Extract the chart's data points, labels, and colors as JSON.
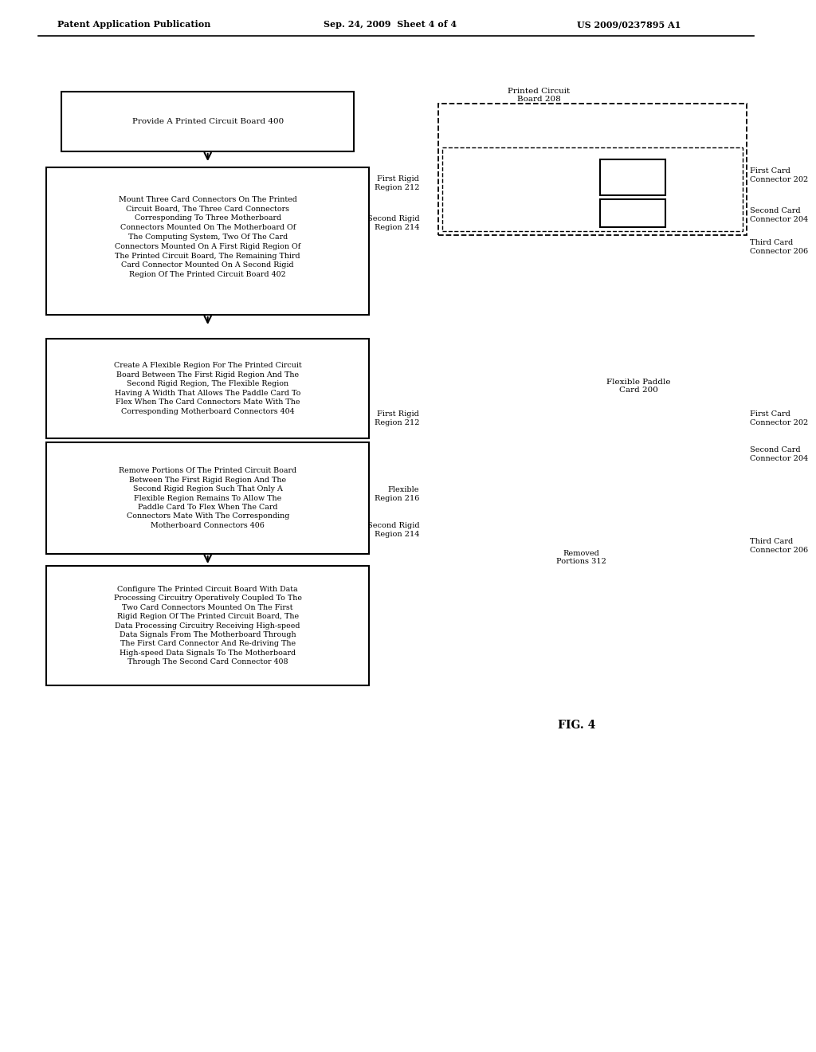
{
  "bg_color": "#ffffff",
  "header_left": "Patent Application Publication",
  "header_mid": "Sep. 24, 2009  Sheet 4 of 4",
  "header_right": "US 2009/0237895 A1",
  "fig_label": "FIG. 4",
  "box1_text": "Provide A Printed Circuit Board 400",
  "box2_text": "Mount Three Card Connectors On The Printed\nCircuit Board, The Three Card Connectors\nCorresponding To Three Motherboard\nConnectors Mounted On The Motherboard Of\nThe Computing System, Two Of The Card\nConnectors Mounted On A First Rigid Region Of\nThe Printed Circuit Board, The Remaining Third\nCard Connector Mounted On A Second Rigid\nRegion Of The Printed Circuit Board 402",
  "box3_text": "Create A Flexible Region For The Printed Circuit\nBoard Between The First Rigid Region And The\nSecond Rigid Region, The Flexible Region\nHaving A Width That Allows The Paddle Card To\nFlex When The Card Connectors Mate With The\nCorresponding Motherboard Connectors 404",
  "box3b_text": "Remove Portions Of The Printed Circuit Board\nBetween The First Rigid Region And The\nSecond Rigid Region Such That Only A\nFlexible Region Remains To Allow The\nPaddle Card To Flex When The Card\nConnectors Mate With The Corresponding\nMotherboard Connectors 406",
  "box4_text": "Configure The Printed Circuit Board With Data\nProcessing Circuitry Operatively Coupled To The\nTwo Card Connectors Mounted On The First\nRigid Region Of The Printed Circuit Board, The\nData Processing Circuitry Receiving High-speed\nData Signals From The Motherboard Through\nThe First Card Connector And Re-driving The\nHigh-speed Data Signals To The Motherboard\nThrough The Second Card Connector 408",
  "pcb_label1": "Printed Circuit\nBoard 208",
  "pcb_label2": "Flexible Paddle\nCard 200",
  "label_first_rigid_1": "First Rigid\nRegion 212",
  "label_second_rigid_1": "Second Rigid\nRegion 214",
  "label_third_card_1": "Third Card\nConnector 206",
  "label_first_card_1": "First Card\nConnector 202",
  "label_second_card_1": "Second Card\nConnector 204",
  "label_first_rigid_2": "First Rigid\nRegion 212",
  "label_second_rigid_2": "Second Rigid\nRegion 214",
  "label_flexible_2": "Flexible\nRegion 216",
  "label_removed_2": "Removed\nPortions 312",
  "label_third_card_2": "Third Card\nConnector 206",
  "label_first_card_2": "First Card\nConnector 202",
  "label_second_card_2": "Second Card\nConnector 204"
}
